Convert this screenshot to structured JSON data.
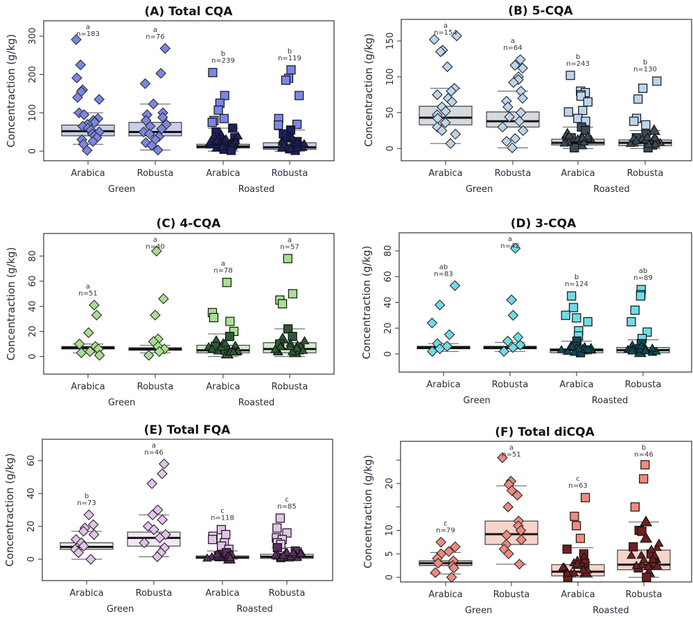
{
  "chart_data": [
    {
      "type": "boxplot",
      "id": "A",
      "title": "(A) Total CQA",
      "ylabel": "Concentraction (g/kg)",
      "yticks": [
        0,
        100,
        200,
        300
      ],
      "ylim": [
        -25,
        340
      ],
      "categories": [
        "Arabica",
        "Robusta",
        "Arabica",
        "Robusta"
      ],
      "groups": [
        {
          "label": "Green",
          "span": [
            0,
            1
          ]
        },
        {
          "label": "Roasted",
          "span": [
            2,
            3
          ]
        }
      ],
      "colors": {
        "light": "#7b86e6",
        "dark": "#1b1f5e",
        "box": "#c9cde6"
      },
      "series": [
        {
          "category": "Arabica",
          "group": "Green",
          "letter": "a",
          "n": "n=183",
          "q1": 40,
          "median": 52,
          "q3": 68,
          "whisker_low": 18,
          "whisker_high": 100,
          "shape": "diamond",
          "points": [
            291,
            225,
            191,
            160,
            155,
            140,
            135,
            100,
            95,
            85,
            80,
            75,
            70,
            65,
            60,
            55,
            50,
            45,
            40,
            35,
            30,
            25,
            18,
            2
          ]
        },
        {
          "category": "Robusta",
          "group": "Green",
          "letter": "a",
          "n": "n=76",
          "q1": 40,
          "median": 50,
          "q3": 75,
          "whisker_low": 3,
          "whisker_high": 123,
          "shape": "diamond",
          "points": [
            268,
            203,
            176,
            123,
            100,
            95,
            88,
            80,
            70,
            65,
            58,
            50,
            45,
            38,
            30,
            22,
            15,
            3
          ]
        },
        {
          "category": "Arabica",
          "group": "Roasted",
          "letter": "b",
          "n": "n=239",
          "q1": 8,
          "median": 12,
          "q3": 18,
          "whisker_low": 0,
          "whisker_high": 60,
          "shape": "square",
          "points": [
            205,
            145,
            125,
            107,
            85,
            80,
            75,
            60,
            50,
            40,
            35,
            30,
            25,
            20,
            15,
            10,
            5,
            2
          ]
        },
        {
          "category": "Robusta",
          "group": "Roasted",
          "letter": "b",
          "n": "n=119",
          "q1": 5,
          "median": 10,
          "q3": 22,
          "whisker_low": 0,
          "whisker_high": 55,
          "shape": "square",
          "points": [
            212,
            190,
            185,
            145,
            85,
            70,
            68,
            55,
            45,
            35,
            25,
            18,
            12,
            6,
            2
          ]
        }
      ]
    },
    {
      "type": "boxplot",
      "id": "B",
      "title": "(B) 5-CQA",
      "ylabel": "Concentraction (g/kg)",
      "yticks": [
        0,
        50,
        100,
        150
      ],
      "ylim": [
        -17,
        180
      ],
      "categories": [
        "Arabica",
        "Robusta",
        "Arabica",
        "Robusta"
      ],
      "groups": [
        {
          "label": "Green",
          "span": [
            0,
            1
          ]
        },
        {
          "label": "Roasted",
          "span": [
            2,
            3
          ]
        }
      ],
      "colors": {
        "light": "#bcd5ee",
        "dark": "#3d4a56",
        "box": "#d6d9de"
      },
      "series": [
        {
          "category": "Arabica",
          "group": "Green",
          "letter": "a",
          "n": "n=154",
          "q1": 33,
          "median": 43,
          "q3": 59,
          "whisker_low": 7,
          "whisker_high": 84,
          "shape": "diamond",
          "points": [
            157,
            152,
            137,
            135,
            114,
            84,
            80,
            75,
            70,
            65,
            58,
            52,
            47,
            42,
            36,
            30,
            25,
            20,
            7
          ]
        },
        {
          "category": "Robusta",
          "group": "Green",
          "letter": "a",
          "n": "n=64",
          "q1": 30,
          "median": 38,
          "q3": 51,
          "whisker_low": 1,
          "whisker_high": 80,
          "shape": "diamond",
          "points": [
            124,
            116,
            112,
            100,
            96,
            92,
            80,
            70,
            66,
            58,
            50,
            44,
            38,
            30,
            25,
            14,
            10,
            1
          ]
        },
        {
          "category": "Arabica",
          "group": "Roasted",
          "letter": "b",
          "n": "n=243",
          "q1": 5,
          "median": 8,
          "q3": 13,
          "whisker_low": 0,
          "whisker_high": 30,
          "shape": "square",
          "points": [
            102,
            80,
            78,
            75,
            73,
            65,
            53,
            51,
            42,
            38,
            30,
            25,
            20,
            15,
            10,
            5,
            1
          ]
        },
        {
          "category": "Robusta",
          "group": "Roasted",
          "letter": "b",
          "n": "n=130",
          "q1": 4,
          "median": 8,
          "q3": 12,
          "whisker_low": 0,
          "whisker_high": 25,
          "shape": "square",
          "points": [
            94,
            84,
            69,
            42,
            38,
            33,
            25,
            20,
            15,
            10,
            5,
            1
          ]
        }
      ]
    },
    {
      "type": "boxplot",
      "id": "C",
      "title": "(C) 4-CQA",
      "ylabel": "Concentraction (g/kg)",
      "yticks": [
        0,
        20,
        40,
        60,
        80
      ],
      "ylim": [
        -14,
        98
      ],
      "categories": [
        "Arabica",
        "Robusta",
        "Arabica",
        "Robusta"
      ],
      "groups": [
        {
          "label": "Green",
          "span": [
            0,
            1
          ]
        },
        {
          "label": "Roasted",
          "span": [
            2,
            3
          ]
        }
      ],
      "colors": {
        "light": "#a8e090",
        "dark": "#2f5a35",
        "box": "#d3ebcf"
      },
      "series": [
        {
          "category": "Arabica",
          "group": "Green",
          "letter": "a",
          "n": "n=51",
          "q1": 6,
          "median": 7,
          "q3": 8,
          "whisker_low": 3,
          "whisker_high": 10,
          "shape": "diamond",
          "points": [
            41,
            33,
            19,
            10,
            8,
            6,
            4,
            3,
            1
          ]
        },
        {
          "category": "Robusta",
          "group": "Green",
          "letter": "a",
          "n": "n=40",
          "q1": 5,
          "median": 6,
          "q3": 7,
          "whisker_low": 3,
          "whisker_high": 9,
          "shape": "diamond",
          "points": [
            84,
            46,
            33,
            14,
            12,
            8,
            6,
            4,
            1
          ]
        },
        {
          "category": "Arabica",
          "group": "Roasted",
          "letter": "a",
          "n": "n=78",
          "q1": 3,
          "median": 5,
          "q3": 9,
          "whisker_low": 0,
          "whisker_high": 18,
          "shape": "square",
          "points": [
            59,
            35,
            31,
            28,
            20,
            16,
            12,
            8,
            5,
            2
          ]
        },
        {
          "category": "Robusta",
          "group": "Roasted",
          "letter": "a",
          "n": "n=57",
          "q1": 3,
          "median": 6,
          "q3": 11,
          "whisker_low": 0,
          "whisker_high": 22,
          "shape": "square",
          "points": [
            78,
            50,
            45,
            42,
            22,
            16,
            14,
            10,
            6,
            3
          ]
        }
      ]
    },
    {
      "type": "boxplot",
      "id": "D",
      "title": "(D) 3-CQA",
      "ylabel": "Concentraction (g/kg)",
      "yticks": [
        0,
        20,
        40,
        60,
        80
      ],
      "ylim": [
        -14,
        94
      ],
      "categories": [
        "Arabica",
        "Robusta",
        "Arabica",
        "Robusta"
      ],
      "groups": [
        {
          "label": "Green",
          "span": [
            0,
            1
          ]
        },
        {
          "label": "Roasted",
          "span": [
            2,
            3
          ]
        }
      ],
      "colors": {
        "light": "#6fdce8",
        "dark": "#104a55",
        "box": "#d3e4ea"
      },
      "series": [
        {
          "category": "Arabica",
          "group": "Green",
          "letter": "ab",
          "n": "n=83",
          "q1": 4,
          "median": 5,
          "q3": 6,
          "whisker_low": 2,
          "whisker_high": 8,
          "shape": "diamond",
          "points": [
            53,
            38,
            24,
            15,
            8,
            6,
            4,
            2
          ]
        },
        {
          "category": "Robusta",
          "group": "Green",
          "letter": "a",
          "n": "n=42",
          "q1": 4,
          "median": 5,
          "q3": 6,
          "whisker_low": 2,
          "whisker_high": 9,
          "shape": "diamond",
          "points": [
            82,
            42,
            30,
            13,
            10,
            7,
            5,
            2
          ]
        },
        {
          "category": "Arabica",
          "group": "Roasted",
          "letter": "b",
          "n": "n=124",
          "q1": 1,
          "median": 3,
          "q3": 4,
          "whisker_low": 0,
          "whisker_high": 10,
          "shape": "square",
          "points": [
            45,
            36,
            30,
            28,
            25,
            18,
            14,
            10,
            6,
            3,
            1
          ]
        },
        {
          "category": "Robusta",
          "group": "Roasted",
          "letter": "ab",
          "n": "n=89",
          "q1": 1,
          "median": 3,
          "q3": 5,
          "whisker_low": 0,
          "whisker_high": 11,
          "shape": "square",
          "points": [
            50,
            46,
            45,
            34,
            25,
            17,
            12,
            8,
            4,
            1
          ]
        }
      ]
    },
    {
      "type": "boxplot",
      "id": "E",
      "title": "(E) Total FQA",
      "ylabel": "Concentraction (g/kg)",
      "yticks": [
        0,
        20,
        40,
        60
      ],
      "ylim": [
        -13,
        73
      ],
      "categories": [
        "Arabica",
        "Robusta",
        "Arabica",
        "Robusta"
      ],
      "groups": [
        {
          "label": "Green",
          "span": [
            0,
            1
          ]
        },
        {
          "label": "Roasted",
          "span": [
            2,
            3
          ]
        }
      ],
      "colors": {
        "light": "#e3c3ec",
        "dark": "#5a2e5e",
        "box": "#f2e8f3"
      },
      "series": [
        {
          "category": "Arabica",
          "group": "Green",
          "letter": "b",
          "n": "n=73",
          "q1": 6,
          "median": 7.5,
          "q3": 10,
          "whisker_low": 0,
          "whisker_high": 17,
          "shape": "diamond",
          "points": [
            27,
            21,
            19,
            17,
            15,
            12,
            10,
            8,
            6,
            4,
            0
          ]
        },
        {
          "category": "Robusta",
          "group": "Green",
          "letter": "a",
          "n": "n=46",
          "q1": 8,
          "median": 13,
          "q3": 16.5,
          "whisker_low": 1.5,
          "whisker_high": 27,
          "shape": "diamond",
          "points": [
            58,
            52,
            46,
            30,
            27,
            24,
            20,
            18,
            15,
            13,
            10,
            7,
            4,
            1.5
          ]
        },
        {
          "category": "Arabica",
          "group": "Roasted",
          "letter": "c",
          "n": "n=118",
          "q1": 0.5,
          "median": 1,
          "q3": 2,
          "whisker_low": 0,
          "whisker_high": 5,
          "shape": "square",
          "points": [
            18,
            15,
            14,
            12,
            10,
            8,
            6,
            4,
            2,
            0
          ]
        },
        {
          "category": "Robusta",
          "group": "Roasted",
          "letter": "c",
          "n": "n=85",
          "q1": 0.5,
          "median": 1.5,
          "q3": 3,
          "whisker_low": 0,
          "whisker_high": 7,
          "shape": "square",
          "points": [
            25,
            19,
            16,
            13,
            12,
            10,
            9,
            7,
            5,
            3,
            1
          ]
        }
      ]
    },
    {
      "type": "boxplot",
      "id": "F",
      "title": "(F) Total diCQA",
      "ylabel": "Concentraction (g/kg)",
      "yticks": [
        0,
        5,
        10,
        15,
        20,
        25
      ],
      "ytick_labels": [
        "0",
        "5",
        "10",
        "",
        "20",
        ""
      ],
      "ylim": [
        -1,
        29
      ],
      "categories": [
        "Arabica",
        "Robusta",
        "Arabica",
        "Robusta"
      ],
      "groups": [
        {
          "label": "Green",
          "span": [
            0,
            1
          ]
        },
        {
          "label": "Roasted",
          "span": [
            2,
            3
          ]
        }
      ],
      "colors": {
        "light": "#f08a7e",
        "dark": "#6e1f22",
        "box": "#f6d4cc"
      },
      "series": [
        {
          "category": "Arabica",
          "group": "Green",
          "letter": "c",
          "n": "n=79",
          "q1": 2.5,
          "median": 3,
          "q3": 3.5,
          "whisker_low": 0.7,
          "whisker_high": 5.3,
          "shape": "diamond",
          "points": [
            7.5,
            6.5,
            5.5,
            5,
            4,
            3.5,
            3,
            2.5,
            2,
            1,
            0
          ]
        },
        {
          "category": "Robusta",
          "group": "Green",
          "letter": "a",
          "n": "n=51",
          "q1": 7,
          "median": 9.2,
          "q3": 12,
          "whisker_low": 2.8,
          "whisker_high": 19.5,
          "shape": "diamond",
          "points": [
            25.5,
            20.5,
            19.8,
            18.5,
            17.5,
            15,
            12,
            11,
            10,
            9,
            8,
            7,
            6,
            5,
            2.8
          ]
        },
        {
          "category": "Arabica",
          "group": "Roasted",
          "letter": "c",
          "n": "n=63",
          "q1": 0.3,
          "median": 1.2,
          "q3": 2.7,
          "whisker_low": 0,
          "whisker_high": 6.3,
          "shape": "square",
          "points": [
            17,
            13,
            11,
            8.3,
            6,
            5,
            4,
            3,
            2,
            1,
            0
          ]
        },
        {
          "category": "Robusta",
          "group": "Roasted",
          "letter": "b",
          "n": "n=46",
          "q1": 1.6,
          "median": 2.7,
          "q3": 5.8,
          "whisker_low": 0,
          "whisker_high": 11.8,
          "shape": "square",
          "points": [
            24,
            21,
            15,
            11.8,
            10,
            9.8,
            8.3,
            6.5,
            5,
            4,
            3,
            2,
            1,
            0
          ]
        }
      ]
    }
  ]
}
